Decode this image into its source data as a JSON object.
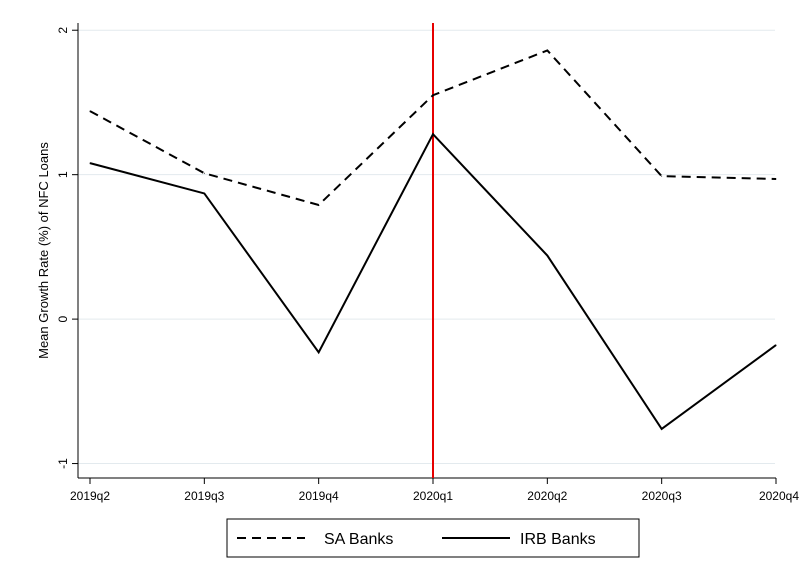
{
  "chart_data": {
    "type": "line",
    "title": "",
    "xlabel": "",
    "ylabel": "Mean Growth Rate (%) of NFC Loans",
    "categories": [
      "2019q2",
      "2019q3",
      "2019q4",
      "2020q1",
      "2020q2",
      "2020q3",
      "2020q4"
    ],
    "y_ticks": [
      -1,
      0,
      1,
      2
    ],
    "y_tick_labels": [
      "-1",
      "0",
      "1",
      "2"
    ],
    "ylim": [
      -1.1,
      2.05
    ],
    "grid": "horizontal",
    "series": [
      {
        "name": "SA Banks",
        "style": "dashed",
        "values": [
          1.44,
          1.01,
          0.79,
          1.55,
          1.86,
          0.99,
          0.97
        ]
      },
      {
        "name": "IRB Banks",
        "style": "solid",
        "values": [
          1.08,
          0.87,
          -0.23,
          1.28,
          0.44,
          -0.76,
          -0.18
        ]
      }
    ],
    "vertical_marker": {
      "category": "2020q1",
      "color": "#e60000"
    },
    "legend_position": "bottom"
  },
  "colors": {
    "series_line": "#000000",
    "grid": "#e3eaee",
    "marker": "#e60000"
  }
}
